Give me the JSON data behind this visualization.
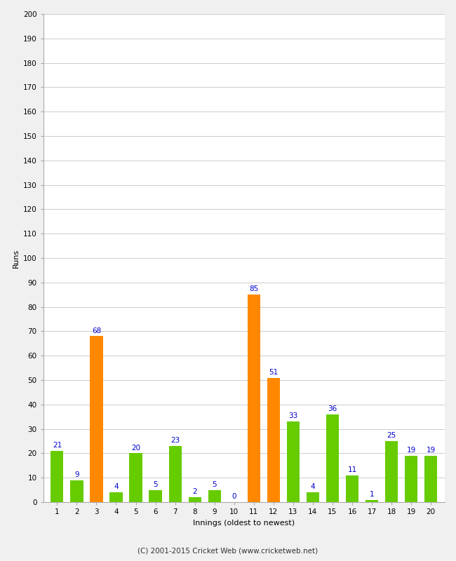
{
  "innings": [
    1,
    2,
    3,
    4,
    5,
    6,
    7,
    8,
    9,
    10,
    11,
    12,
    13,
    14,
    15,
    16,
    17,
    18,
    19,
    20
  ],
  "values": [
    21,
    9,
    68,
    4,
    20,
    5,
    23,
    2,
    5,
    0,
    85,
    51,
    33,
    4,
    36,
    11,
    1,
    25,
    19,
    19
  ],
  "colors": [
    "#66cc00",
    "#66cc00",
    "#ff8800",
    "#66cc00",
    "#66cc00",
    "#66cc00",
    "#66cc00",
    "#66cc00",
    "#66cc00",
    "#66cc00",
    "#ff8800",
    "#ff8800",
    "#66cc00",
    "#66cc00",
    "#66cc00",
    "#66cc00",
    "#66cc00",
    "#66cc00",
    "#66cc00",
    "#66cc00"
  ],
  "xlabel": "Innings (oldest to newest)",
  "ylabel": "Runs",
  "ylim": [
    0,
    200
  ],
  "yticks": [
    0,
    10,
    20,
    30,
    40,
    50,
    60,
    70,
    80,
    90,
    100,
    110,
    120,
    130,
    140,
    150,
    160,
    170,
    180,
    190,
    200
  ],
  "footer": "(C) 2001-2015 Cricket Web (www.cricketweb.net)",
  "background_color": "#f0f0f0",
  "plot_bg_color": "#ffffff",
  "label_color": "#0000cc",
  "label_fontsize": 7.5,
  "tick_fontsize": 7.5,
  "axis_label_fontsize": 8
}
